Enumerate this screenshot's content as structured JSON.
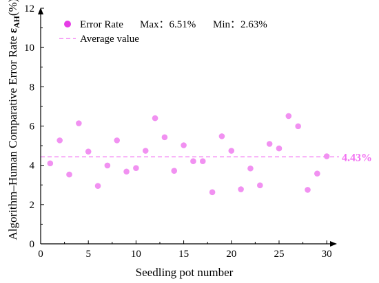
{
  "chart_data": {
    "type": "scatter",
    "xlabel": "Seedling pot number",
    "ylabel": {
      "prefix": "Algorithm–Human Comparative Error Rate ",
      "symbol": "ε",
      "subscript": "AH",
      "suffix": "(%)"
    },
    "xlim": [
      0,
      31
    ],
    "ylim": [
      0,
      12
    ],
    "xticks": [
      "0",
      "5",
      "10",
      "15",
      "20",
      "25",
      "30"
    ],
    "yticks": [
      "0",
      "2",
      "4",
      "6",
      "8",
      "10",
      "12"
    ],
    "grid": false,
    "legend_position": "top-left",
    "series": [
      {
        "name": "Error Rate",
        "color": "#f191f1",
        "x": [
          1,
          2,
          3,
          4,
          5,
          6,
          7,
          8,
          9,
          10,
          11,
          12,
          13,
          14,
          15,
          16,
          17,
          18,
          19,
          20,
          21,
          22,
          23,
          24,
          25,
          26,
          27,
          28,
          29,
          30
        ],
        "y": [
          4.1,
          5.27,
          3.53,
          6.14,
          4.7,
          2.95,
          3.99,
          5.27,
          3.68,
          3.86,
          4.74,
          6.4,
          5.43,
          3.72,
          5.02,
          4.21,
          4.21,
          2.63,
          5.48,
          4.74,
          2.78,
          3.84,
          2.98,
          5.09,
          4.86,
          6.51,
          5.99,
          2.75,
          3.58,
          4.46
        ]
      }
    ],
    "legend": {
      "scatter_label": "Error Rate",
      "max_text": "Max：6.51%",
      "min_text": "Min：2.63%",
      "line_label": "Average value"
    },
    "average": {
      "value": 4.43,
      "label": "4.43%",
      "color": "#f26ff2"
    },
    "legend_marker_color": "#e63ce6"
  }
}
